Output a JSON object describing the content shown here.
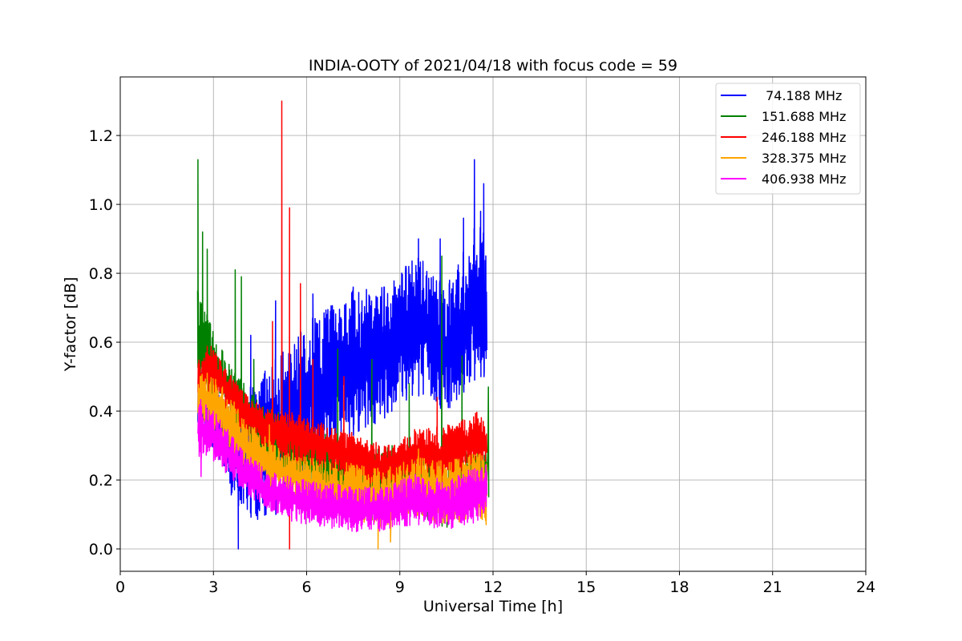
{
  "chart_data": {
    "type": "line",
    "title": "INDIA-OOTY of 2021/04/18 with focus code = 59",
    "xlabel": "Universal Time [h]",
    "ylabel": "Y-factor [dB]",
    "xlim": [
      0,
      24
    ],
    "ylim": [
      -0.065,
      1.37
    ],
    "xticks": [
      0,
      3,
      6,
      9,
      12,
      15,
      18,
      21,
      24
    ],
    "xtick_labels": [
      "0",
      "3",
      "6",
      "9",
      "12",
      "15",
      "18",
      "21",
      "24"
    ],
    "yticks": [
      0.0,
      0.2,
      0.4,
      0.6,
      0.8,
      1.0,
      1.2
    ],
    "ytick_labels": [
      "0.0",
      "0.2",
      "0.4",
      "0.6",
      "0.8",
      "1.0",
      "1.2"
    ],
    "grid": true,
    "legend_position": "top-right",
    "series": [
      {
        "name": " 74.188 MHz",
        "color": "#0000ff",
        "x": [
          2.5,
          2.8,
          3.2,
          3.6,
          4.0,
          4.5,
          5.0,
          5.5,
          6.0,
          6.5,
          7.0,
          7.5,
          8.0,
          8.5,
          9.0,
          9.5,
          10.0,
          10.5,
          11.0,
          11.5,
          11.8
        ],
        "low": [
          0.3,
          0.3,
          0.25,
          0.15,
          0.1,
          0.08,
          0.1,
          0.15,
          0.2,
          0.25,
          0.3,
          0.33,
          0.35,
          0.38,
          0.42,
          0.45,
          0.42,
          0.4,
          0.45,
          0.5,
          0.5
        ],
        "high": [
          0.55,
          0.5,
          0.45,
          0.4,
          0.45,
          0.5,
          0.55,
          0.6,
          0.65,
          0.7,
          0.72,
          0.75,
          0.76,
          0.76,
          0.8,
          0.85,
          0.82,
          0.75,
          0.85,
          0.95,
          0.9
        ],
        "peaks": [
          [
            3.8,
            0.0
          ],
          [
            4.2,
            0.62
          ],
          [
            5.0,
            0.72
          ],
          [
            6.2,
            0.74
          ],
          [
            7.5,
            0.76
          ],
          [
            8.5,
            0.76
          ],
          [
            9.2,
            0.82
          ],
          [
            9.6,
            0.9
          ],
          [
            10.3,
            0.9
          ],
          [
            10.6,
            0.78
          ],
          [
            11.4,
            1.13
          ],
          [
            11.7,
            1.06
          ],
          [
            11.6,
            0.98
          ],
          [
            11.05,
            0.96
          ]
        ]
      },
      {
        "name": "151.688 MHz",
        "color": "#008000",
        "x": [
          2.5,
          2.8,
          3.2,
          3.6,
          4.0,
          4.5,
          5.0,
          5.5,
          6.0,
          6.5,
          7.0,
          7.5,
          8.0,
          8.5,
          9.0,
          9.5,
          10.0,
          10.5,
          11.0,
          11.5,
          11.8
        ],
        "low": [
          0.45,
          0.45,
          0.42,
          0.38,
          0.32,
          0.25,
          0.2,
          0.18,
          0.16,
          0.14,
          0.12,
          0.1,
          0.08,
          0.1,
          0.12,
          0.1,
          0.08,
          0.06,
          0.1,
          0.12,
          0.15
        ],
        "high": [
          0.75,
          0.68,
          0.6,
          0.52,
          0.48,
          0.42,
          0.4,
          0.38,
          0.36,
          0.34,
          0.32,
          0.3,
          0.28,
          0.3,
          0.3,
          0.28,
          0.26,
          0.26,
          0.28,
          0.3,
          0.3
        ],
        "peaks": [
          [
            2.5,
            1.13
          ],
          [
            2.65,
            0.92
          ],
          [
            2.8,
            0.87
          ],
          [
            3.7,
            0.81
          ],
          [
            3.9,
            0.79
          ],
          [
            4.3,
            0.55
          ],
          [
            7.0,
            0.58
          ],
          [
            8.1,
            0.55
          ],
          [
            9.3,
            0.48
          ],
          [
            10.35,
            0.85
          ],
          [
            11.0,
            0.56
          ],
          [
            11.85,
            0.47
          ]
        ]
      },
      {
        "name": "246.188 MHz",
        "color": "#ff0000",
        "x": [
          2.5,
          2.8,
          3.2,
          3.6,
          4.0,
          4.5,
          5.0,
          5.5,
          6.0,
          6.5,
          7.0,
          7.5,
          8.0,
          8.5,
          9.0,
          9.5,
          10.0,
          10.5,
          11.0,
          11.5,
          11.8
        ],
        "low": [
          0.42,
          0.45,
          0.42,
          0.38,
          0.33,
          0.3,
          0.27,
          0.25,
          0.24,
          0.23,
          0.22,
          0.2,
          0.18,
          0.17,
          0.18,
          0.2,
          0.18,
          0.2,
          0.22,
          0.24,
          0.24
        ],
        "high": [
          0.55,
          0.6,
          0.56,
          0.5,
          0.46,
          0.42,
          0.4,
          0.4,
          0.38,
          0.37,
          0.35,
          0.34,
          0.32,
          0.3,
          0.32,
          0.35,
          0.35,
          0.36,
          0.38,
          0.4,
          0.38
        ],
        "peaks": [
          [
            5.2,
            1.3
          ],
          [
            5.45,
            0.99
          ],
          [
            4.9,
            0.66
          ],
          [
            5.8,
            0.77
          ],
          [
            6.2,
            0.55
          ],
          [
            7.2,
            0.5
          ],
          [
            10.2,
            0.44
          ],
          [
            5.45,
            0.0
          ]
        ]
      },
      {
        "name": "328.375 MHz",
        "color": "#ffa500",
        "x": [
          2.5,
          2.8,
          3.2,
          3.6,
          4.0,
          4.5,
          5.0,
          5.5,
          6.0,
          6.5,
          7.0,
          7.5,
          8.0,
          8.5,
          9.0,
          9.5,
          10.0,
          10.5,
          11.0,
          11.5,
          11.8
        ],
        "low": [
          0.35,
          0.35,
          0.32,
          0.28,
          0.24,
          0.2,
          0.17,
          0.14,
          0.12,
          0.1,
          0.09,
          0.08,
          0.07,
          0.06,
          0.08,
          0.1,
          0.08,
          0.06,
          0.08,
          0.1,
          0.06
        ],
        "high": [
          0.5,
          0.52,
          0.48,
          0.44,
          0.38,
          0.34,
          0.3,
          0.28,
          0.27,
          0.26,
          0.25,
          0.25,
          0.24,
          0.23,
          0.25,
          0.27,
          0.26,
          0.26,
          0.27,
          0.28,
          0.28
        ],
        "peaks": [
          [
            3.3,
            0.42
          ],
          [
            4.8,
            0.36
          ],
          [
            8.3,
            0.0
          ],
          [
            8.7,
            0.02
          ],
          [
            9.6,
            0.29
          ]
        ]
      },
      {
        "name": "406.938 MHz",
        "color": "#ff00ff",
        "x": [
          2.5,
          2.8,
          3.2,
          3.6,
          4.0,
          4.5,
          5.0,
          5.5,
          6.0,
          6.5,
          7.0,
          7.5,
          8.0,
          8.5,
          9.0,
          9.5,
          10.0,
          10.5,
          11.0,
          11.5,
          11.8
        ],
        "low": [
          0.26,
          0.27,
          0.24,
          0.2,
          0.16,
          0.13,
          0.1,
          0.08,
          0.07,
          0.06,
          0.06,
          0.05,
          0.05,
          0.05,
          0.06,
          0.07,
          0.06,
          0.05,
          0.06,
          0.08,
          0.1
        ],
        "high": [
          0.44,
          0.42,
          0.38,
          0.33,
          0.28,
          0.25,
          0.22,
          0.21,
          0.2,
          0.19,
          0.19,
          0.18,
          0.18,
          0.18,
          0.2,
          0.22,
          0.21,
          0.2,
          0.22,
          0.24,
          0.25
        ],
        "peaks": [
          [
            2.6,
            0.21
          ],
          [
            3.0,
            0.35
          ]
        ]
      }
    ]
  }
}
